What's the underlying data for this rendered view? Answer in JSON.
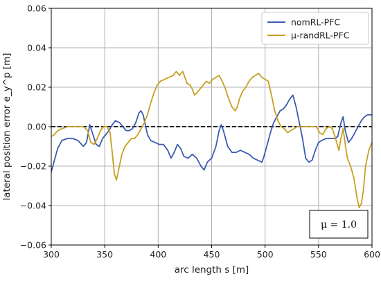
{
  "chart_data": {
    "type": "line",
    "title": "",
    "xlabel": "arc length s [m]",
    "ylabel": "lateral position error e_y^p [m]",
    "xlim": [
      300,
      600
    ],
    "ylim": [
      -0.06,
      0.06
    ],
    "x_ticks": [
      300,
      350,
      400,
      450,
      500,
      550,
      600
    ],
    "y_ticks": [
      -0.06,
      -0.04,
      -0.02,
      0.0,
      0.02,
      0.04,
      0.06
    ],
    "x_tick_labels": [
      "300",
      "350",
      "400",
      "450",
      "500",
      "550",
      "600"
    ],
    "y_tick_labels": [
      "−0.06",
      "−0.04",
      "−0.02",
      "0.00",
      "0.02",
      "0.04",
      "0.06"
    ],
    "grid": true,
    "legend_position": "top-right",
    "reference_line": 0.0,
    "annotation": "μ = 1.0",
    "series": [
      {
        "name": "nomRL-PFC",
        "color": "#3a5bb0",
        "points": [
          [
            300,
            -0.023
          ],
          [
            303,
            -0.017
          ],
          [
            306,
            -0.011
          ],
          [
            310,
            -0.007
          ],
          [
            315,
            -0.006
          ],
          [
            320,
            -0.006
          ],
          [
            325,
            -0.007
          ],
          [
            330,
            -0.01
          ],
          [
            333,
            -0.008
          ],
          [
            336,
            0.001
          ],
          [
            339,
            -0.004
          ],
          [
            342,
            -0.009
          ],
          [
            345,
            -0.01
          ],
          [
            348,
            -0.006
          ],
          [
            351,
            -0.004
          ],
          [
            354,
            -0.002
          ],
          [
            357,
            0.001
          ],
          [
            360,
            0.003
          ],
          [
            364,
            0.002
          ],
          [
            367,
            0.0
          ],
          [
            370,
            -0.002
          ],
          [
            373,
            -0.002
          ],
          [
            376,
            -0.001
          ],
          [
            379,
            0.002
          ],
          [
            382,
            0.007
          ],
          [
            384,
            0.008
          ],
          [
            386,
            0.006
          ],
          [
            388,
            0.001
          ],
          [
            390,
            -0.004
          ],
          [
            393,
            -0.007
          ],
          [
            397,
            -0.008
          ],
          [
            401,
            -0.009
          ],
          [
            405,
            -0.009
          ],
          [
            409,
            -0.012
          ],
          [
            412,
            -0.016
          ],
          [
            415,
            -0.013
          ],
          [
            418,
            -0.009
          ],
          [
            421,
            -0.011
          ],
          [
            424,
            -0.015
          ],
          [
            428,
            -0.016
          ],
          [
            432,
            -0.014
          ],
          [
            436,
            -0.016
          ],
          [
            440,
            -0.02
          ],
          [
            443,
            -0.022
          ],
          [
            446,
            -0.018
          ],
          [
            450,
            -0.016
          ],
          [
            454,
            -0.01
          ],
          [
            457,
            -0.002
          ],
          [
            459,
            0.001
          ],
          [
            461,
            -0.002
          ],
          [
            465,
            -0.01
          ],
          [
            469,
            -0.013
          ],
          [
            473,
            -0.013
          ],
          [
            477,
            -0.012
          ],
          [
            481,
            -0.013
          ],
          [
            485,
            -0.014
          ],
          [
            489,
            -0.016
          ],
          [
            493,
            -0.017
          ],
          [
            497,
            -0.018
          ],
          [
            499,
            -0.015
          ],
          [
            502,
            -0.009
          ],
          [
            505,
            -0.003
          ],
          [
            508,
            0.002
          ],
          [
            511,
            0.005
          ],
          [
            514,
            0.008
          ],
          [
            517,
            0.009
          ],
          [
            520,
            0.011
          ],
          [
            523,
            0.014
          ],
          [
            526,
            0.016
          ],
          [
            529,
            0.01
          ],
          [
            532,
            0.002
          ],
          [
            535,
            -0.006
          ],
          [
            538,
            -0.016
          ],
          [
            541,
            -0.018
          ],
          [
            544,
            -0.017
          ],
          [
            547,
            -0.012
          ],
          [
            550,
            -0.008
          ],
          [
            553,
            -0.007
          ],
          [
            557,
            -0.006
          ],
          [
            561,
            -0.006
          ],
          [
            565,
            -0.006
          ],
          [
            568,
            -0.005
          ],
          [
            571,
            0.002
          ],
          [
            573,
            0.005
          ],
          [
            575,
            -0.002
          ],
          [
            578,
            -0.008
          ],
          [
            581,
            -0.006
          ],
          [
            584,
            -0.003
          ],
          [
            587,
            0.0
          ],
          [
            590,
            0.003
          ],
          [
            593,
            0.005
          ],
          [
            596,
            0.006
          ],
          [
            600,
            0.006
          ]
        ]
      },
      {
        "name": "μ-randRL-PFC",
        "color": "#c8a020",
        "points": [
          [
            300,
            -0.005
          ],
          [
            303,
            -0.004
          ],
          [
            306,
            -0.002
          ],
          [
            310,
            -0.001
          ],
          [
            315,
            0.0
          ],
          [
            320,
            0.0
          ],
          [
            325,
            0.0
          ],
          [
            330,
            0.0
          ],
          [
            334,
            -0.002
          ],
          [
            337,
            -0.008
          ],
          [
            340,
            -0.009
          ],
          [
            343,
            -0.006
          ],
          [
            346,
            -0.002
          ],
          [
            349,
            0.0
          ],
          [
            352,
            0.0
          ],
          [
            355,
            -0.003
          ],
          [
            357,
            -0.013
          ],
          [
            359,
            -0.024
          ],
          [
            361,
            -0.027
          ],
          [
            363,
            -0.022
          ],
          [
            366,
            -0.014
          ],
          [
            369,
            -0.01
          ],
          [
            372,
            -0.008
          ],
          [
            375,
            -0.006
          ],
          [
            378,
            -0.006
          ],
          [
            381,
            -0.004
          ],
          [
            384,
            -0.001
          ],
          [
            387,
            0.002
          ],
          [
            390,
            0.006
          ],
          [
            393,
            0.012
          ],
          [
            396,
            0.017
          ],
          [
            399,
            0.021
          ],
          [
            402,
            0.023
          ],
          [
            406,
            0.024
          ],
          [
            410,
            0.025
          ],
          [
            414,
            0.026
          ],
          [
            417,
            0.028
          ],
          [
            420,
            0.026
          ],
          [
            423,
            0.028
          ],
          [
            425,
            0.025
          ],
          [
            427,
            0.022
          ],
          [
            430,
            0.021
          ],
          [
            432,
            0.019
          ],
          [
            434,
            0.016
          ],
          [
            436,
            0.017
          ],
          [
            439,
            0.019
          ],
          [
            442,
            0.021
          ],
          [
            445,
            0.023
          ],
          [
            448,
            0.022
          ],
          [
            451,
            0.024
          ],
          [
            454,
            0.025
          ],
          [
            457,
            0.026
          ],
          [
            460,
            0.023
          ],
          [
            463,
            0.019
          ],
          [
            466,
            0.014
          ],
          [
            469,
            0.01
          ],
          [
            472,
            0.008
          ],
          [
            474,
            0.01
          ],
          [
            476,
            0.014
          ],
          [
            479,
            0.018
          ],
          [
            482,
            0.02
          ],
          [
            485,
            0.023
          ],
          [
            488,
            0.025
          ],
          [
            491,
            0.026
          ],
          [
            494,
            0.027
          ],
          [
            497,
            0.025
          ],
          [
            500,
            0.024
          ],
          [
            503,
            0.023
          ],
          [
            506,
            0.016
          ],
          [
            509,
            0.008
          ],
          [
            512,
            0.003
          ],
          [
            515,
            0.0
          ],
          [
            518,
            -0.001
          ],
          [
            521,
            -0.003
          ],
          [
            524,
            -0.002
          ],
          [
            527,
            -0.001
          ],
          [
            530,
            0.0
          ],
          [
            533,
            0.0
          ],
          [
            536,
            0.0
          ],
          [
            539,
            0.0
          ],
          [
            542,
            0.0
          ],
          [
            545,
            0.0
          ],
          [
            548,
            0.0
          ],
          [
            551,
            -0.003
          ],
          [
            554,
            -0.004
          ],
          [
            557,
            -0.001
          ],
          [
            560,
            0.0
          ],
          [
            563,
            -0.001
          ],
          [
            566,
            -0.006
          ],
          [
            569,
            -0.012
          ],
          [
            571,
            -0.006
          ],
          [
            573,
            -0.001
          ],
          [
            575,
            -0.009
          ],
          [
            577,
            -0.016
          ],
          [
            580,
            -0.02
          ],
          [
            583,
            -0.026
          ],
          [
            586,
            -0.036
          ],
          [
            588,
            -0.041
          ],
          [
            590,
            -0.039
          ],
          [
            592,
            -0.032
          ],
          [
            594,
            -0.02
          ],
          [
            597,
            -0.012
          ],
          [
            600,
            -0.008
          ]
        ]
      }
    ]
  }
}
